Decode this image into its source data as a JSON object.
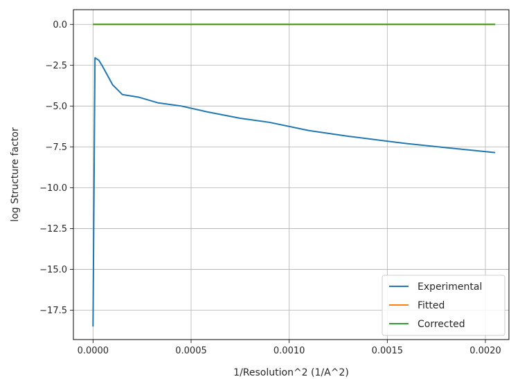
{
  "chart_data": {
    "type": "line",
    "title": "",
    "xlabel": "1/Resolution^2 (1/A^2)",
    "ylabel": "log Structure factor",
    "xlim": [
      -0.0001,
      0.00212
    ],
    "ylim": [
      -19.3,
      0.9
    ],
    "x_ticks": [
      0.0,
      0.0005,
      0.001,
      0.0015,
      0.002
    ],
    "x_tick_labels": [
      "0.0000",
      "0.0005",
      "0.0010",
      "0.0015",
      "0.0020"
    ],
    "y_ticks": [
      0.0,
      -2.5,
      -5.0,
      -7.5,
      -10.0,
      -12.5,
      -15.0,
      -17.5
    ],
    "y_tick_labels": [
      "0.0",
      "−2.5",
      "−5.0",
      "−7.5",
      "−10.0",
      "−12.5",
      "−15.0",
      "−17.5"
    ],
    "grid": true,
    "legend_position": "lower-right",
    "series": [
      {
        "name": "Experimental",
        "color": "#1f77b4",
        "x": [
          0.0,
          1e-05,
          3e-05,
          5e-05,
          0.0001,
          0.00015,
          0.00023,
          0.00033,
          0.00045,
          0.00058,
          0.00075,
          0.0009,
          0.0011,
          0.0013,
          0.0015,
          0.0016,
          0.0018,
          0.00205
        ],
        "y": [
          -18.5,
          -2.05,
          -2.2,
          -2.6,
          -3.7,
          -4.3,
          -4.45,
          -4.8,
          -5.0,
          -5.35,
          -5.75,
          -6.0,
          -6.5,
          -6.85,
          -7.15,
          -7.3,
          -7.55,
          -7.85
        ]
      },
      {
        "name": "Fitted",
        "color": "#ff7f0e",
        "x": [
          0.0,
          0.00205
        ],
        "y": [
          0.0,
          0.0
        ]
      },
      {
        "name": "Corrected",
        "color": "#2ca02c",
        "x": [
          0.0,
          0.00205
        ],
        "y": [
          0.0,
          0.0
        ]
      }
    ]
  }
}
